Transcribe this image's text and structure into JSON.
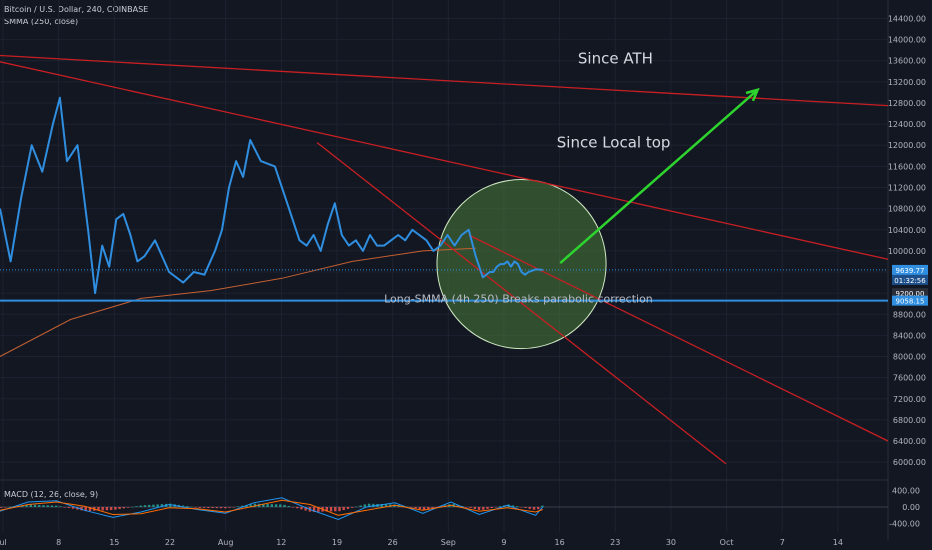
{
  "header": {
    "title": "Bitcoin / U.S. Dollar, 240, COINBASE",
    "indicator": "SMMA (250, close)"
  },
  "macd_legend": "MACD (12, 26, close, 9)",
  "colors": {
    "background": "#131722",
    "grid": "#1e2230",
    "price": "#2f8ee0",
    "smma": "#c46032",
    "trendline": "#c81f23",
    "arrow": "#2ed42e",
    "circle_fill": "#4a7d3a",
    "support": "#2f8ee0"
  },
  "chart_data": {
    "type": "line",
    "title": "Bitcoin / U.S. Dollar, 240, COINBASE",
    "x_ticks": [
      "ul",
      "8",
      "15",
      "22",
      "Aug",
      "12",
      "19",
      "26",
      "Sep",
      "9",
      "16",
      "23",
      "30",
      "Oct",
      "7",
      "14"
    ],
    "y_ticks": [
      6000,
      6400,
      6800,
      7200,
      7600,
      8000,
      8400,
      8800,
      9200,
      9600,
      10000,
      10400,
      10800,
      11200,
      11600,
      12000,
      12400,
      12800,
      13200,
      13600,
      14000,
      14400
    ],
    "y_tick_labels": [
      "6000.00",
      "6400.00",
      "6800.00",
      "7200.00",
      "7600.00",
      "8000.00",
      "8400.00",
      "8800.00",
      "9200.00",
      "9600.00",
      "10000.00",
      "10400.00",
      "10800.00",
      "11200.00",
      "11600.00",
      "12000.00",
      "12400.00",
      "12800.00",
      "13200.00",
      "13600.00",
      "14000.00",
      "14400.00"
    ],
    "ylim": [
      5700,
      14750
    ],
    "xlim": [
      0,
      126
    ],
    "price_series": {
      "x": [
        0,
        1.5,
        3,
        4.5,
        6,
        7.5,
        8.5,
        9.5,
        11,
        12.5,
        13.5,
        14.5,
        15.5,
        16.5,
        17.5,
        18.5,
        19.5,
        20.5,
        22,
        24,
        26,
        27.5,
        29,
        30.5,
        31.5,
        32.5,
        33.5,
        34.5,
        35.5,
        37,
        39,
        41,
        42.5,
        43.5,
        44.5,
        45.5,
        46.5,
        47.5,
        48.5,
        49.5,
        50.5,
        51.5,
        52.5,
        53.5,
        54.5,
        55.5,
        56.5,
        57.5,
        58.5,
        59.5,
        60.5,
        61.5,
        62.5,
        63.5,
        64.5,
        65.5,
        66.5,
        67.5,
        68.5,
        69.5,
        70,
        70.5,
        71,
        71.5,
        72,
        72.5,
        73,
        73.5,
        74,
        74.5,
        75,
        76,
        77
      ],
      "y": [
        10800,
        9800,
        11000,
        12000,
        11500,
        12400,
        12900,
        11700,
        12000,
        10400,
        9200,
        10100,
        9700,
        10600,
        10700,
        10300,
        9800,
        9900,
        10200,
        9600,
        9400,
        9600,
        9550,
        10000,
        10400,
        11200,
        11700,
        11400,
        12100,
        11700,
        11600,
        10800,
        10200,
        10100,
        10300,
        10000,
        10500,
        10900,
        10300,
        10100,
        10200,
        10000,
        10300,
        10100,
        10100,
        10200,
        10300,
        10200,
        10400,
        10300,
        10200,
        10000,
        10100,
        10300,
        10100,
        10300,
        10400,
        9900,
        9500,
        9600,
        9600,
        9700,
        9750,
        9750,
        9800,
        9700,
        9800,
        9750,
        9600,
        9550,
        9600,
        9650,
        9640
      ]
    },
    "smma_series": {
      "x": [
        0,
        10,
        20,
        30,
        40,
        50,
        60,
        67.5
      ],
      "y": [
        8000,
        8700,
        9100,
        9250,
        9480,
        9800,
        10000,
        10050
      ]
    },
    "trendlines": [
      {
        "x": [
          0,
          126
        ],
        "y": [
          13700,
          12750
        ]
      },
      {
        "x": [
          0,
          126
        ],
        "y": [
          13580,
          9840
        ]
      },
      {
        "x": [
          45,
          103
        ],
        "y": [
          12050,
          5970
        ]
      },
      {
        "x": [
          66.5,
          126
        ],
        "y": [
          10300,
          6400
        ]
      }
    ],
    "support_level": {
      "value": 9058.15,
      "label": "9058.15"
    },
    "current_price": {
      "value": 9639.77,
      "label": "9639.77",
      "countdown": "01:32:56"
    },
    "grey_label": "9200.00",
    "annotations": [
      {
        "text": "Since ATH",
        "x": 82,
        "y": 13550
      },
      {
        "text": "Since Local top",
        "x": 79,
        "y": 11960
      },
      {
        "text": "Long-SMMA (4h 250) Breaks parabolic correction",
        "x": 54.5,
        "y": 9020
      }
    ],
    "arrow": {
      "x": [
        79.5,
        107.5
      ],
      "y": [
        9770,
        13050
      ]
    },
    "circle": {
      "cx": 74,
      "cy": 9750,
      "r": 12
    },
    "macd": {
      "ylim": [
        -600,
        600
      ],
      "y_ticks": [
        400,
        0,
        -400
      ],
      "y_tick_labels": [
        "400.00",
        "0.00",
        "-400.00"
      ],
      "macd_line": {
        "x": [
          0,
          4,
          8,
          12,
          16,
          20,
          24,
          28,
          32,
          36,
          40,
          44,
          48,
          52,
          56,
          60,
          64,
          68,
          72,
          76,
          77
        ],
        "y": [
          -100,
          120,
          150,
          -80,
          -250,
          -120,
          60,
          -60,
          -150,
          100,
          220,
          -60,
          -300,
          0,
          100,
          -150,
          120,
          -180,
          40,
          -200,
          0
        ]
      },
      "signal_line": {
        "x": [
          0,
          4,
          8,
          12,
          16,
          20,
          24,
          28,
          32,
          36,
          40,
          44,
          48,
          52,
          56,
          60,
          64,
          68,
          72,
          76,
          77
        ],
        "y": [
          -80,
          60,
          120,
          20,
          -180,
          -160,
          -20,
          -40,
          -120,
          20,
          160,
          60,
          -200,
          -80,
          40,
          -80,
          40,
          -100,
          -20,
          -120,
          -60
        ]
      }
    }
  }
}
